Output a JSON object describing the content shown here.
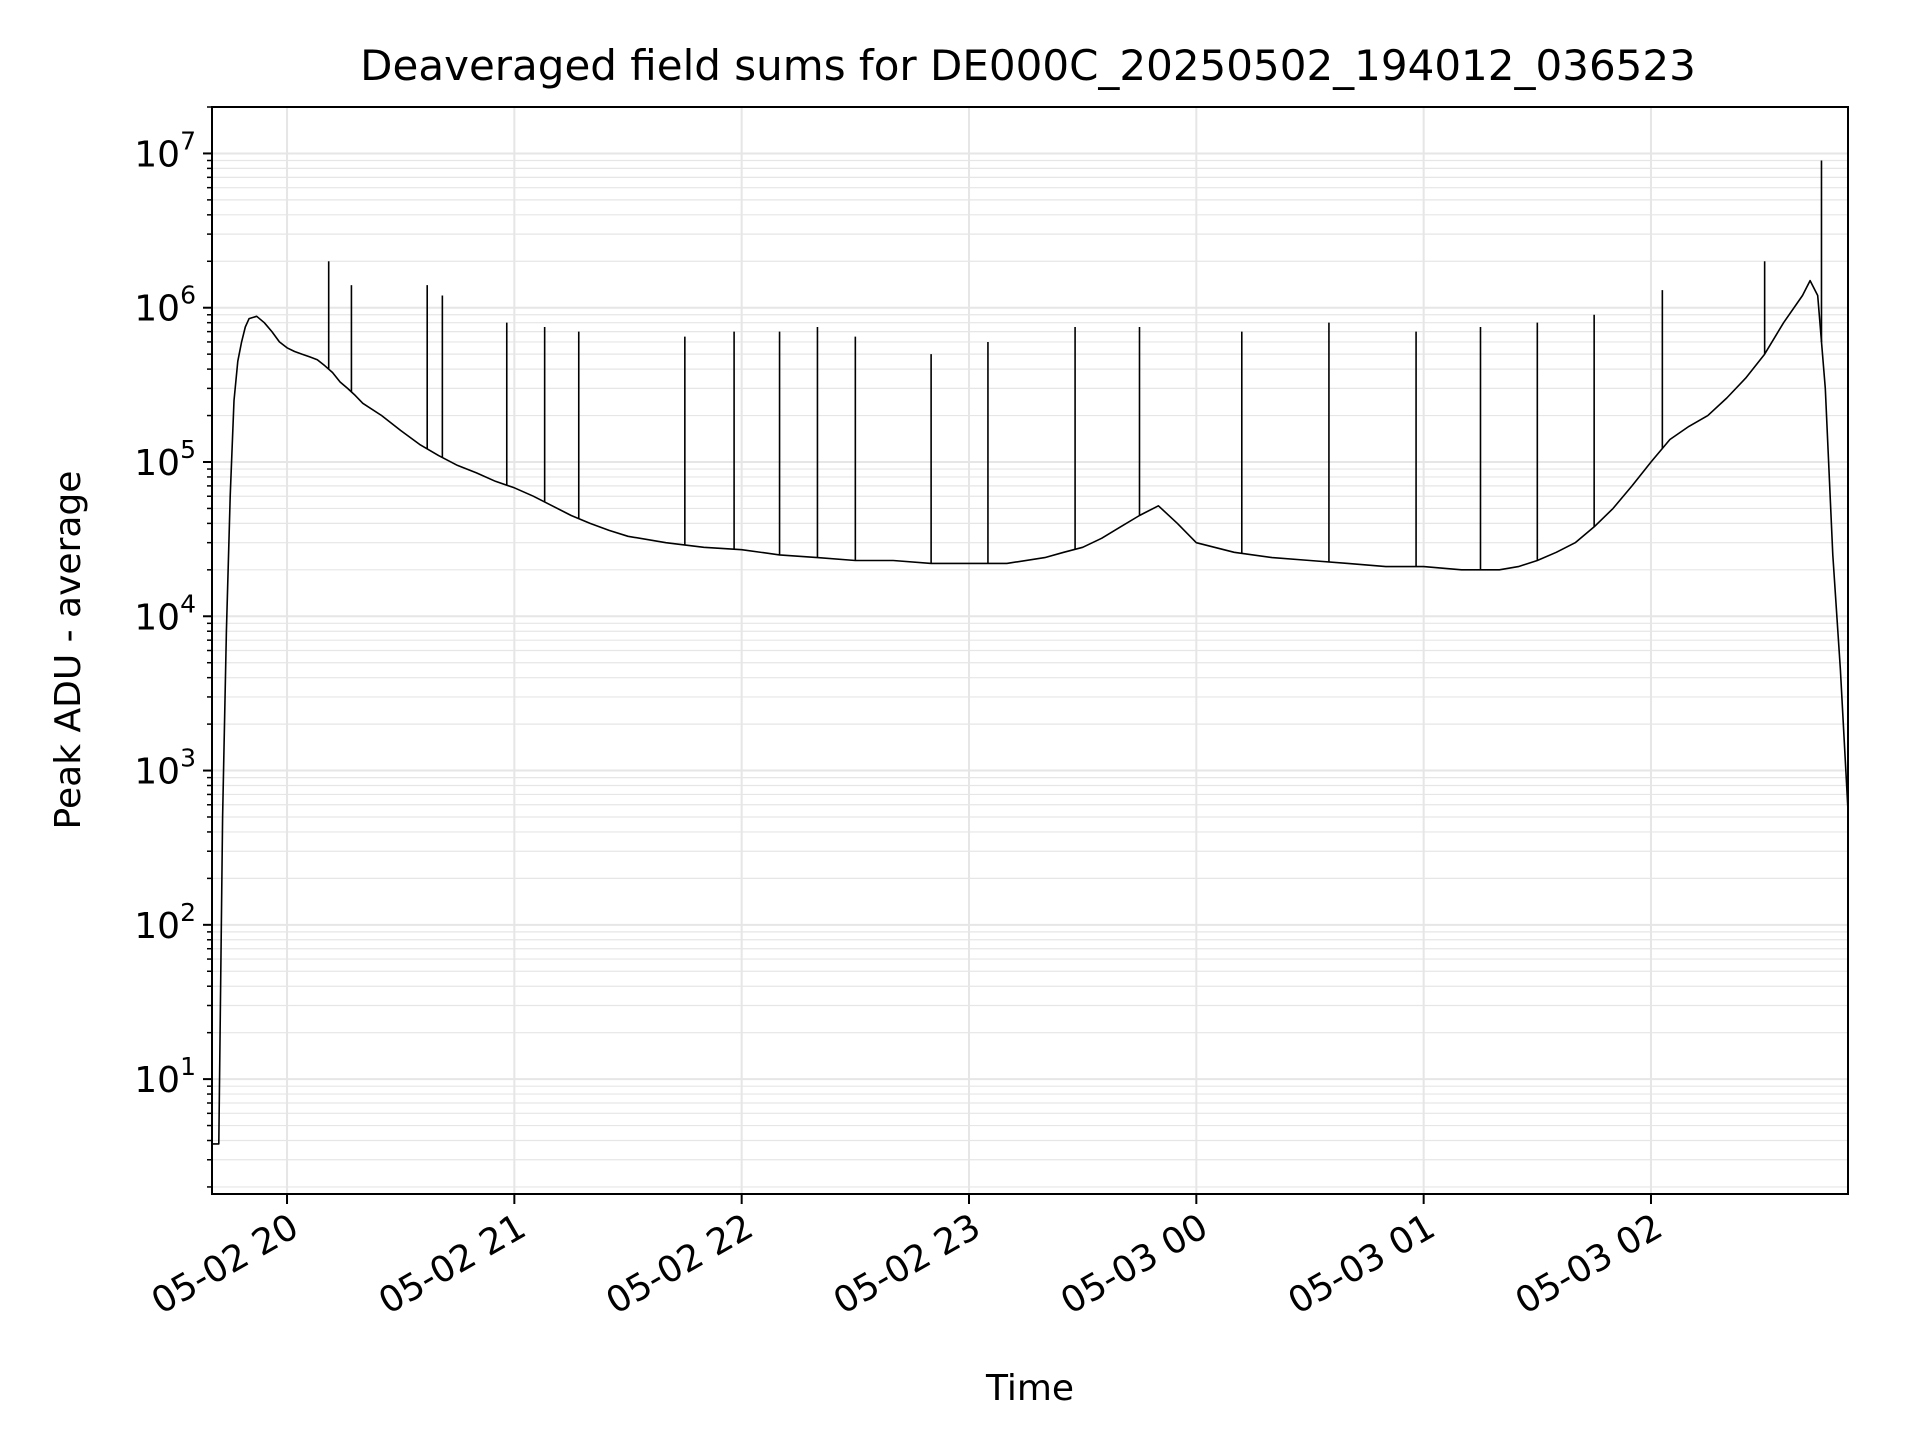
{
  "chart_data": {
    "type": "line",
    "title": "Deaveraged field sums for DE000C_20250502_194012_036523",
    "xlabel": "Time",
    "ylabel": "Peak ADU - average",
    "yscale": "log",
    "grid": true,
    "x_range": [
      "2025-05-02 19:40:12",
      "2025-05-03 02:52:00"
    ],
    "ylim": [
      1.8,
      20000000
    ],
    "x_ticks": [
      {
        "time": "2025-05-02 20:00",
        "label": "05-02 20"
      },
      {
        "time": "2025-05-02 21:00",
        "label": "05-02 21"
      },
      {
        "time": "2025-05-02 22:00",
        "label": "05-02 22"
      },
      {
        "time": "2025-05-02 23:00",
        "label": "05-02 23"
      },
      {
        "time": "2025-05-03 00:00",
        "label": "05-03 00"
      },
      {
        "time": "2025-05-03 01:00",
        "label": "05-03 01"
      },
      {
        "time": "2025-05-03 02:00",
        "label": "05-03 02"
      }
    ],
    "y_ticks": [
      {
        "value": 10,
        "base": "10",
        "exp": "1"
      },
      {
        "value": 100,
        "base": "10",
        "exp": "2"
      },
      {
        "value": 1000,
        "base": "10",
        "exp": "3"
      },
      {
        "value": 10000,
        "base": "10",
        "exp": "4"
      },
      {
        "value": 100000,
        "base": "10",
        "exp": "5"
      },
      {
        "value": 1000000,
        "base": "10",
        "exp": "6"
      },
      {
        "value": 10000000,
        "base": "10",
        "exp": "7"
      }
    ],
    "line_color": "#000000",
    "grid_color": "#e6e6e6",
    "series": [
      {
        "x": [
          "2025-05-02 19:40:12",
          "2025-05-02 19:41",
          "2025-05-02 19:42",
          "2025-05-02 19:43",
          "2025-05-02 19:44",
          "2025-05-02 19:45",
          "2025-05-02 19:46",
          "2025-05-02 19:47",
          "2025-05-02 19:48",
          "2025-05-02 19:49",
          "2025-05-02 19:50",
          "2025-05-02 19:52",
          "2025-05-02 19:54",
          "2025-05-02 19:56",
          "2025-05-02 19:58",
          "2025-05-02 20:00",
          "2025-05-02 20:02",
          "2025-05-02 20:04",
          "2025-05-02 20:06",
          "2025-05-02 20:08",
          "2025-05-02 20:10",
          "2025-05-02 20:12",
          "2025-05-02 20:14",
          "2025-05-02 20:16",
          "2025-05-02 20:18",
          "2025-05-02 20:20",
          "2025-05-02 20:25",
          "2025-05-02 20:30",
          "2025-05-02 20:35",
          "2025-05-02 20:40",
          "2025-05-02 20:45",
          "2025-05-02 20:50",
          "2025-05-02 20:55",
          "2025-05-02 21:00",
          "2025-05-02 21:05",
          "2025-05-02 21:10",
          "2025-05-02 21:15",
          "2025-05-02 21:20",
          "2025-05-02 21:25",
          "2025-05-02 21:30",
          "2025-05-02 21:40",
          "2025-05-02 21:50",
          "2025-05-02 22:00",
          "2025-05-02 22:10",
          "2025-05-02 22:20",
          "2025-05-02 22:30",
          "2025-05-02 22:40",
          "2025-05-02 22:50",
          "2025-05-02 23:00",
          "2025-05-02 23:10",
          "2025-05-02 23:20",
          "2025-05-02 23:25",
          "2025-05-02 23:30",
          "2025-05-02 23:35",
          "2025-05-02 23:40",
          "2025-05-02 23:45",
          "2025-05-02 23:50",
          "2025-05-02 23:55",
          "2025-05-03 00:00",
          "2025-05-03 00:10",
          "2025-05-03 00:20",
          "2025-05-03 00:30",
          "2025-05-03 00:40",
          "2025-05-03 00:50",
          "2025-05-03 01:00",
          "2025-05-03 01:10",
          "2025-05-03 01:15",
          "2025-05-03 01:20",
          "2025-05-03 01:25",
          "2025-05-03 01:30",
          "2025-05-03 01:35",
          "2025-05-03 01:40",
          "2025-05-03 01:45",
          "2025-05-03 01:50",
          "2025-05-03 01:55",
          "2025-05-03 02:00",
          "2025-05-03 02:05",
          "2025-05-03 02:10",
          "2025-05-03 02:15",
          "2025-05-03 02:20",
          "2025-05-03 02:25",
          "2025-05-03 02:30",
          "2025-05-03 02:35",
          "2025-05-03 02:40",
          "2025-05-03 02:42",
          "2025-05-03 02:44",
          "2025-05-03 02:46",
          "2025-05-03 02:48",
          "2025-05-03 02:50",
          "2025-05-03 02:52"
        ],
        "y": [
          3.8,
          3.8,
          3.8,
          500,
          8000,
          60000,
          250000,
          450000,
          600000,
          750000,
          850000,
          880000,
          800000,
          700000,
          600000,
          550000,
          520000,
          500000,
          480000,
          460000,
          420000,
          380000,
          330000,
          300000,
          270000,
          240000,
          200000,
          160000,
          130000,
          110000,
          95000,
          85000,
          75000,
          68000,
          60000,
          52000,
          45000,
          40000,
          36000,
          33000,
          30000,
          28000,
          27000,
          25000,
          24000,
          23000,
          23000,
          22000,
          22000,
          22000,
          24000,
          26000,
          28000,
          32000,
          38000,
          45000,
          52000,
          40000,
          30000,
          26000,
          24000,
          23000,
          22000,
          21000,
          21000,
          20000,
          20000,
          20000,
          21000,
          23000,
          26000,
          30000,
          38000,
          50000,
          70000,
          100000,
          140000,
          170000,
          200000,
          260000,
          350000,
          500000,
          800000,
          1200000,
          1500000,
          1200000,
          300000,
          25000,
          4500,
          550
        ]
      }
    ],
    "spikes": [
      {
        "x": "2025-05-02 20:11",
        "y": 2000000
      },
      {
        "x": "2025-05-02 20:17",
        "y": 1400000
      },
      {
        "x": "2025-05-02 20:37",
        "y": 1400000
      },
      {
        "x": "2025-05-02 20:41",
        "y": 1200000
      },
      {
        "x": "2025-05-02 20:58",
        "y": 800000
      },
      {
        "x": "2025-05-02 21:08",
        "y": 750000
      },
      {
        "x": "2025-05-02 21:17",
        "y": 700000
      },
      {
        "x": "2025-05-02 21:45",
        "y": 650000
      },
      {
        "x": "2025-05-02 21:58",
        "y": 700000
      },
      {
        "x": "2025-05-02 22:10",
        "y": 700000
      },
      {
        "x": "2025-05-02 22:20",
        "y": 750000
      },
      {
        "x": "2025-05-02 22:30",
        "y": 650000
      },
      {
        "x": "2025-05-02 22:50",
        "y": 500000
      },
      {
        "x": "2025-05-02 23:05",
        "y": 600000
      },
      {
        "x": "2025-05-02 23:28",
        "y": 750000
      },
      {
        "x": "2025-05-02 23:45",
        "y": 750000
      },
      {
        "x": "2025-05-03 00:12",
        "y": 700000
      },
      {
        "x": "2025-05-03 00:35",
        "y": 800000
      },
      {
        "x": "2025-05-03 00:58",
        "y": 700000
      },
      {
        "x": "2025-05-03 01:15",
        "y": 750000
      },
      {
        "x": "2025-05-03 01:30",
        "y": 800000
      },
      {
        "x": "2025-05-03 01:45",
        "y": 900000
      },
      {
        "x": "2025-05-03 02:03",
        "y": 1300000
      },
      {
        "x": "2025-05-03 02:30",
        "y": 2000000
      },
      {
        "x": "2025-05-03 02:45",
        "y": 9000000
      }
    ]
  }
}
